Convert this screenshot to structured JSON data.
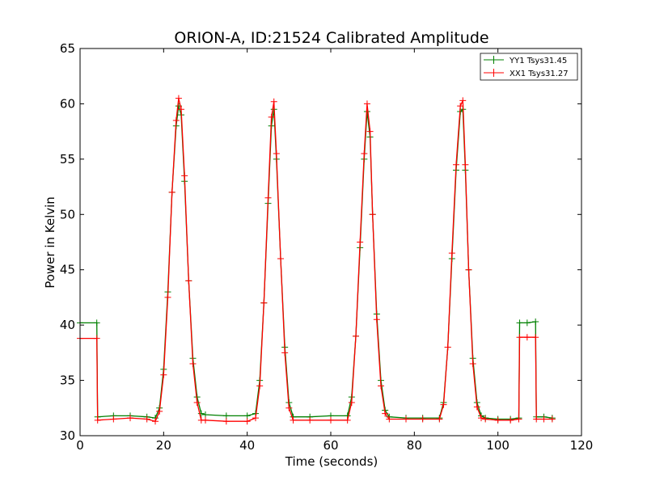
{
  "chart_data": {
    "type": "line",
    "title": "ORION-A, ID:21524 Calibrated Amplitude",
    "xlabel": "Time (seconds)",
    "ylabel": "Power in Kelvin",
    "xlim": [
      0,
      120
    ],
    "ylim": [
      30,
      65
    ],
    "xticks": [
      "0",
      "20",
      "40",
      "60",
      "80",
      "100",
      "120"
    ],
    "yticks": [
      "30",
      "35",
      "40",
      "45",
      "50",
      "55",
      "60",
      "65"
    ],
    "grid": false,
    "legend_position": "top-right",
    "series": [
      {
        "name": "YY1 Tsys31.45",
        "color": "#008000",
        "marker": "plus",
        "x": [
          0,
          4,
          4.2,
          8,
          12,
          16,
          18,
          19,
          20,
          21,
          22,
          23,
          23.6,
          24.2,
          25,
          26,
          27,
          28,
          29,
          30,
          35,
          40,
          42,
          43,
          44,
          45,
          45.8,
          46.4,
          47,
          48,
          49,
          50,
          51,
          55,
          60,
          64,
          65,
          66,
          67,
          68,
          68.7,
          69.4,
          70,
          71,
          72,
          73,
          74,
          78,
          82,
          86,
          87,
          88,
          89,
          90,
          91,
          91.6,
          92.2,
          93,
          94,
          95,
          96,
          97,
          100,
          103,
          105,
          105.2,
          107,
          109,
          109.2,
          111,
          113
        ],
        "values": [
          40.2,
          40.2,
          31.7,
          31.8,
          31.8,
          31.7,
          31.6,
          32.5,
          36,
          43,
          52,
          58,
          59.8,
          59,
          53,
          44,
          37,
          33.5,
          32,
          31.9,
          31.8,
          31.8,
          32,
          35,
          42,
          51,
          58,
          59.5,
          55,
          46,
          38,
          33,
          31.7,
          31.7,
          31.8,
          31.8,
          33.5,
          39,
          47,
          55,
          59.3,
          57,
          50,
          41,
          35,
          32.3,
          31.7,
          31.6,
          31.6,
          31.6,
          33,
          38,
          46,
          54,
          59.3,
          59.5,
          54,
          45,
          37,
          33,
          31.8,
          31.6,
          31.5,
          31.5,
          31.6,
          40.2,
          40.2,
          40.3,
          31.7,
          31.7,
          31.6
        ]
      },
      {
        "name": "XX1 Tsys31.27",
        "color": "#ff0000",
        "marker": "plus",
        "x": [
          0,
          4,
          4.2,
          8,
          12,
          16,
          18,
          19,
          20,
          21,
          22,
          23,
          23.6,
          24.2,
          25,
          26,
          27,
          28,
          29,
          30,
          35,
          40,
          42,
          43,
          44,
          45,
          45.8,
          46.4,
          47,
          48,
          49,
          50,
          51,
          55,
          60,
          64,
          65,
          66,
          67,
          68,
          68.7,
          69.4,
          70,
          71,
          72,
          73,
          74,
          78,
          82,
          86,
          87,
          88,
          89,
          90,
          91,
          91.6,
          92.2,
          93,
          94,
          95,
          96,
          97,
          100,
          103,
          105,
          105.2,
          107,
          109,
          109.2,
          111,
          113
        ],
        "values": [
          38.8,
          38.8,
          31.4,
          31.5,
          31.6,
          31.5,
          31.3,
          32.2,
          35.5,
          42.5,
          52,
          58.5,
          60.5,
          59.5,
          53.5,
          44,
          36.5,
          33,
          31.4,
          31.4,
          31.3,
          31.3,
          31.6,
          34.5,
          42,
          51.5,
          58.8,
          60.2,
          55.5,
          46,
          37.5,
          32.5,
          31.4,
          31.4,
          31.4,
          31.4,
          33,
          39,
          47.5,
          55.5,
          60,
          57.5,
          50,
          40.5,
          34.5,
          32,
          31.5,
          31.5,
          31.5,
          31.5,
          32.8,
          38,
          46.5,
          54.5,
          59.8,
          60.3,
          54.5,
          45,
          36.5,
          32.6,
          31.6,
          31.5,
          31.4,
          31.4,
          31.5,
          38.9,
          38.9,
          38.9,
          31.5,
          31.5,
          31.5
        ]
      }
    ]
  }
}
